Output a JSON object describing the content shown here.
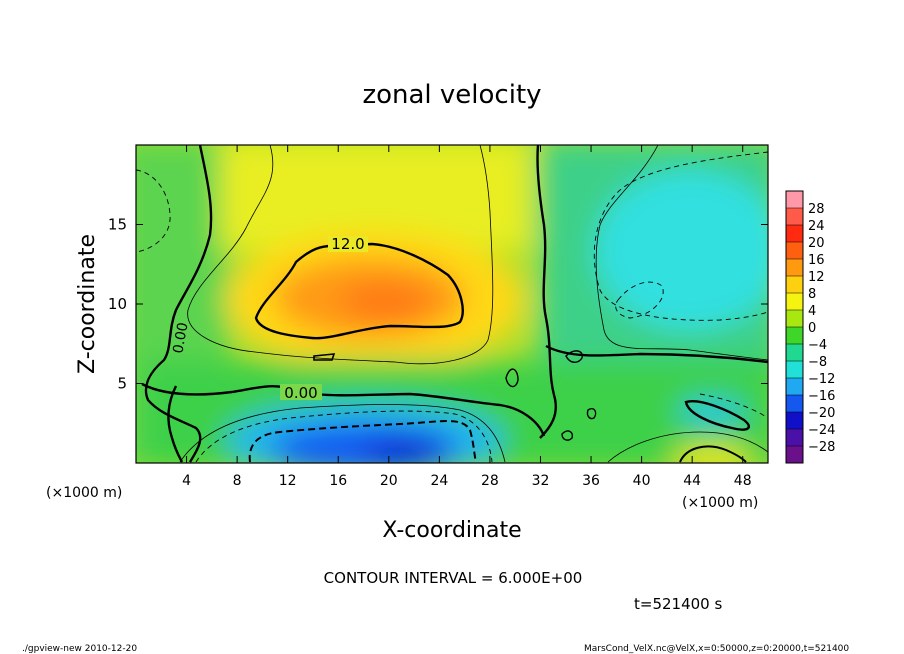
{
  "chart_data": {
    "type": "heatmap",
    "title": "zonal velocity",
    "xlabel": "X-coordinate",
    "ylabel": "Z-coordinate",
    "x_unit_note": "(×1000 m)",
    "y_unit_note": "(×1000 m)",
    "xlim": [
      0,
      50
    ],
    "ylim": [
      0,
      20
    ],
    "x_ticks": [
      4,
      8,
      12,
      16,
      20,
      24,
      28,
      32,
      36,
      40,
      44,
      48
    ],
    "y_ticks": [
      5,
      10,
      15
    ],
    "colorbar": {
      "labels": [
        "28",
        "24",
        "20",
        "16",
        "12",
        "8",
        "4",
        "0",
        "−4",
        "−8",
        "−12",
        "−16",
        "−20",
        "−24",
        "−28"
      ],
      "colors": [
        "#ff99aa",
        "#ff5a4a",
        "#ff2a10",
        "#ff6010",
        "#ff9a10",
        "#ffd010",
        "#f4f410",
        "#a8e810",
        "#3ed628",
        "#20d890",
        "#20e0d8",
        "#20a8f0",
        "#1458f0",
        "#1010c8",
        "#4a10a8",
        "#6a108a"
      ]
    },
    "contour_labels": [
      {
        "text": "12.0",
        "x": 15.5,
        "y": 13.2
      },
      {
        "text": "0.00",
        "x": 13.0,
        "y": 4.2
      },
      {
        "text": "0.00",
        "x": 3.6,
        "y": 7.8
      }
    ],
    "contour_interval_text": "CONTOUR INTERVAL = 6.000E+00",
    "time_text": "t=521400 s"
  },
  "footer": {
    "left": "./gpview-new  2010-12-20",
    "right": "MarsCond_VelX.nc@VelX,x=0:50000,z=0:20000,t=521400"
  }
}
